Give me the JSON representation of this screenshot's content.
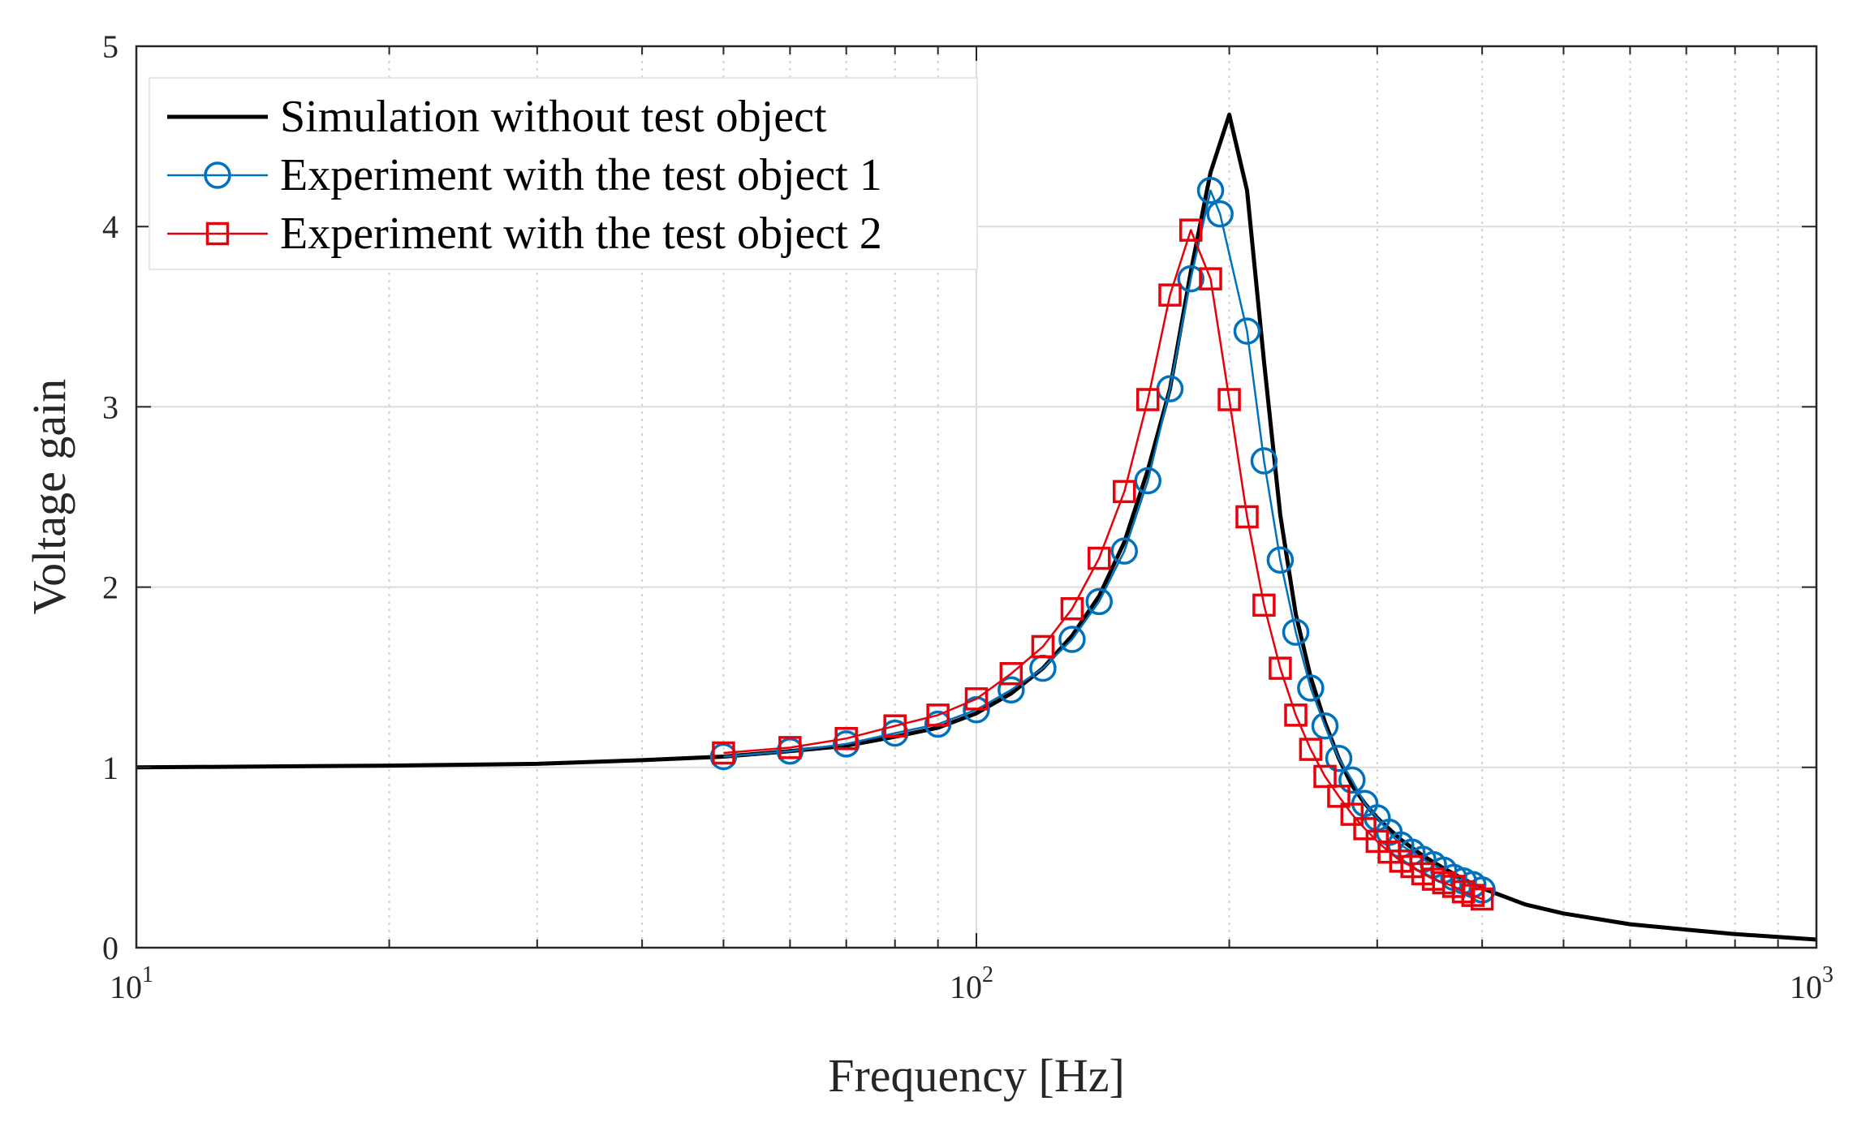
{
  "chart_data": {
    "type": "line",
    "title": "",
    "xlabel": "Frequency [Hz]",
    "ylabel": "Voltage gain",
    "xscale": "log",
    "xlim": [
      10,
      1000
    ],
    "ylim": [
      0,
      5
    ],
    "grid": true,
    "legend_position": "top-left",
    "x_ticks": [
      {
        "value": 10,
        "base": "10",
        "exp": "1"
      },
      {
        "value": 100,
        "base": "10",
        "exp": "2"
      },
      {
        "value": 1000,
        "base": "10",
        "exp": "3"
      }
    ],
    "y_ticks": [
      {
        "value": 0,
        "label": "0"
      },
      {
        "value": 1,
        "label": "1"
      },
      {
        "value": 2,
        "label": "2"
      },
      {
        "value": 3,
        "label": "3"
      },
      {
        "value": 4,
        "label": "4"
      },
      {
        "value": 5,
        "label": "5"
      }
    ],
    "series": [
      {
        "name": "Simulation without test object",
        "color": "#000000",
        "marker": "none",
        "x": [
          10,
          20,
          30,
          40,
          50,
          60,
          70,
          80,
          90,
          100,
          110,
          120,
          130,
          140,
          150,
          160,
          170,
          180,
          190,
          200,
          210,
          220,
          230,
          240,
          250,
          260,
          270,
          280,
          290,
          300,
          320,
          340,
          360,
          380,
          400,
          450,
          500,
          600,
          700,
          800,
          900,
          1000
        ],
        "y": [
          1.0,
          1.01,
          1.02,
          1.04,
          1.06,
          1.09,
          1.12,
          1.17,
          1.22,
          1.3,
          1.41,
          1.55,
          1.73,
          1.95,
          2.25,
          2.65,
          3.1,
          3.75,
          4.3,
          4.62,
          4.2,
          3.25,
          2.4,
          1.85,
          1.5,
          1.25,
          1.05,
          0.9,
          0.8,
          0.72,
          0.6,
          0.51,
          0.44,
          0.38,
          0.33,
          0.24,
          0.19,
          0.13,
          0.1,
          0.075,
          0.06,
          0.045
        ]
      },
      {
        "name": "Experiment with the test object 1",
        "color": "#0072BD",
        "marker": "circle",
        "x": [
          50,
          60,
          70,
          80,
          90,
          100,
          110,
          120,
          130,
          140,
          150,
          160,
          170,
          180,
          190,
          195,
          210,
          220,
          230,
          240,
          250,
          260,
          270,
          280,
          290,
          300,
          310,
          320,
          330,
          340,
          350,
          360,
          370,
          380,
          390,
          400
        ],
        "y": [
          1.06,
          1.09,
          1.13,
          1.19,
          1.24,
          1.32,
          1.43,
          1.55,
          1.71,
          1.92,
          2.2,
          2.59,
          3.1,
          3.71,
          4.2,
          4.07,
          3.42,
          2.7,
          2.15,
          1.75,
          1.44,
          1.23,
          1.05,
          0.93,
          0.8,
          0.72,
          0.64,
          0.57,
          0.53,
          0.49,
          0.46,
          0.43,
          0.39,
          0.37,
          0.35,
          0.32
        ]
      },
      {
        "name": "Experiment with the test object 2",
        "color": "#E8000B",
        "marker": "square",
        "x": [
          50,
          60,
          70,
          80,
          90,
          100,
          110,
          120,
          130,
          140,
          150,
          160,
          170,
          180,
          190,
          200,
          210,
          220,
          230,
          240,
          250,
          260,
          270,
          280,
          290,
          300,
          310,
          320,
          330,
          340,
          350,
          360,
          370,
          380,
          390,
          400
        ],
        "y": [
          1.08,
          1.11,
          1.16,
          1.23,
          1.29,
          1.38,
          1.52,
          1.67,
          1.88,
          2.16,
          2.53,
          3.04,
          3.62,
          3.98,
          3.71,
          3.04,
          2.39,
          1.9,
          1.55,
          1.29,
          1.1,
          0.95,
          0.84,
          0.74,
          0.66,
          0.59,
          0.53,
          0.48,
          0.45,
          0.41,
          0.38,
          0.36,
          0.34,
          0.31,
          0.29,
          0.27
        ]
      }
    ]
  }
}
